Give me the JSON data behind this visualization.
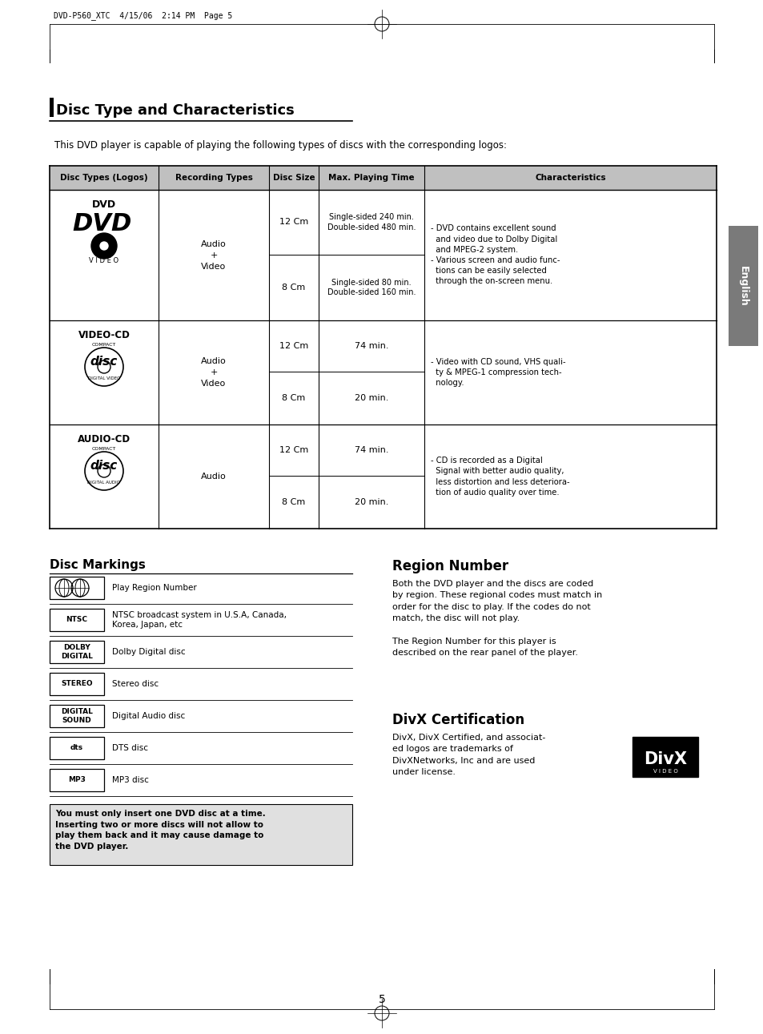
{
  "page_bg": "#ffffff",
  "title": "Disc Type and Characteristics",
  "subtitle": "This DVD player is capable of playing the following types of discs with the corresponding logos:",
  "table_header": [
    "Disc Types (Logos)",
    "Recording Types",
    "Disc Size",
    "Max. Playing Time",
    "Characteristics"
  ],
  "disc_markings_title": "Disc Markings",
  "disc_marking_icons": [
    "region",
    "NTSC",
    "DOLBY\nDIGITAL",
    "STEREO",
    "DIGITAL\nSOUND",
    "dts",
    "MP3"
  ],
  "disc_marking_descs": [
    "Play Region Number",
    "NTSC broadcast system in U.S.A, Canada,\nKorea, Japan, etc",
    "Dolby Digital disc",
    "Stereo disc",
    "Digital Audio disc",
    "DTS disc",
    "MP3 disc"
  ],
  "region_number_title": "Region Number",
  "region_number_text": "Both the DVD player and the discs are coded\nby region. These regional codes must match in\norder for the disc to play. If the codes do not\nmatch, the disc will not play.\n\nThe Region Number for this player is\ndescribed on the rear panel of the player.",
  "divx_title": "DivX Certification",
  "divx_text": "DivX, DivX Certified, and associat-\ned logos are trademarks of\nDivXNetworks, Inc and are used\nunder license.",
  "warning_text": "You must only insert one DVD disc at a time.\nInserting two or more discs will not allow to\nplay them back and it may cause damage to\nthe DVD player.",
  "header_watermark": "DVD-P560_XTC  4/15/06  2:14 PM  Page 5",
  "english_tab": "English",
  "page_number": "5",
  "gray_color": "#7a7a7a",
  "header_bg": "#c0c0c0",
  "warning_bg": "#e0e0e0",
  "chars_dvd": "- DVD contains excellent sound\n  and video due to Dolby Digital\n  and MPEG-2 system.\n- Various screen and audio func-\n  tions can be easily selected\n  through the on-screen menu.",
  "chars_vcd": "- Video with CD sound, VHS quali-\n  ty & MPEG-1 compression tech-\n  nology.",
  "chars_acd": "- CD is recorded as a Digital\n  Signal with better audio quality,\n  less distortion and less deteriora-\n  tion of audio quality over time."
}
